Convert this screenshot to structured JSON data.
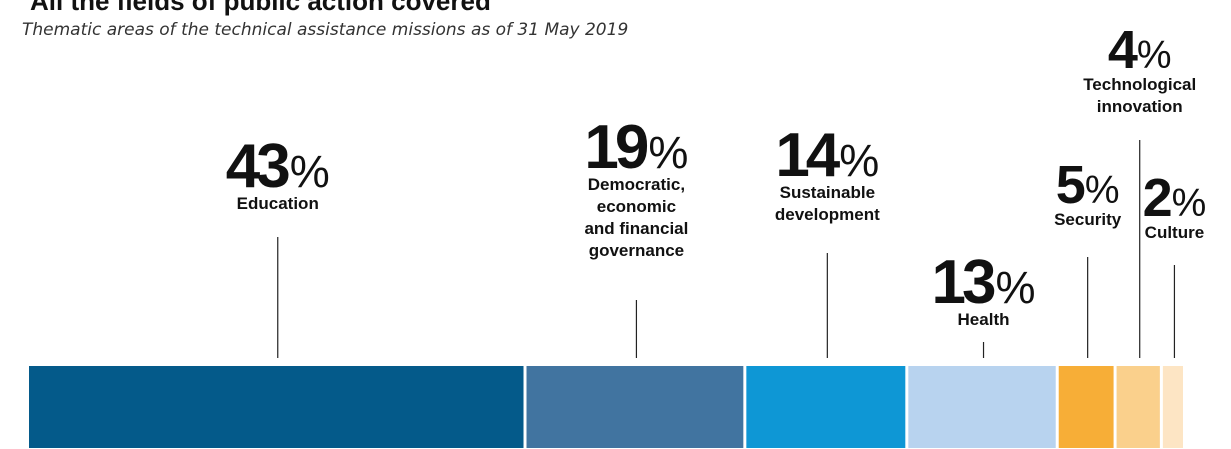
{
  "header": {
    "title": "All the fields of public action covered",
    "subtitle": "Thematic areas of the technical assistance missions as of 31 May 2019"
  },
  "chart_data": {
    "type": "bar",
    "stacked": true,
    "orientation": "horizontal",
    "unit": "%",
    "categories": [
      "Education",
      "Democratic, economic and financial governance",
      "Sustainable development",
      "Health",
      "Security",
      "Technological innovation",
      "Culture"
    ],
    "values": [
      43,
      19,
      14,
      13,
      5,
      4,
      2
    ],
    "value_labels": [
      "43",
      "19",
      "14",
      "13",
      "5",
      "4",
      "2"
    ],
    "label_lines": [
      [
        "Education"
      ],
      [
        "Democratic,",
        "economic",
        "and financial",
        "governance"
      ],
      [
        "Sustainable",
        "development"
      ],
      [
        "Health"
      ],
      [
        "Security"
      ],
      [
        "Technological",
        "innovation"
      ],
      [
        "Culture"
      ]
    ],
    "colors": [
      "#045a8a",
      "#4174a0",
      "#0e97d5",
      "#b8d3ef",
      "#f7ae37",
      "#fad08c",
      "#fde5c4"
    ],
    "legend": "none",
    "grid": false
  }
}
